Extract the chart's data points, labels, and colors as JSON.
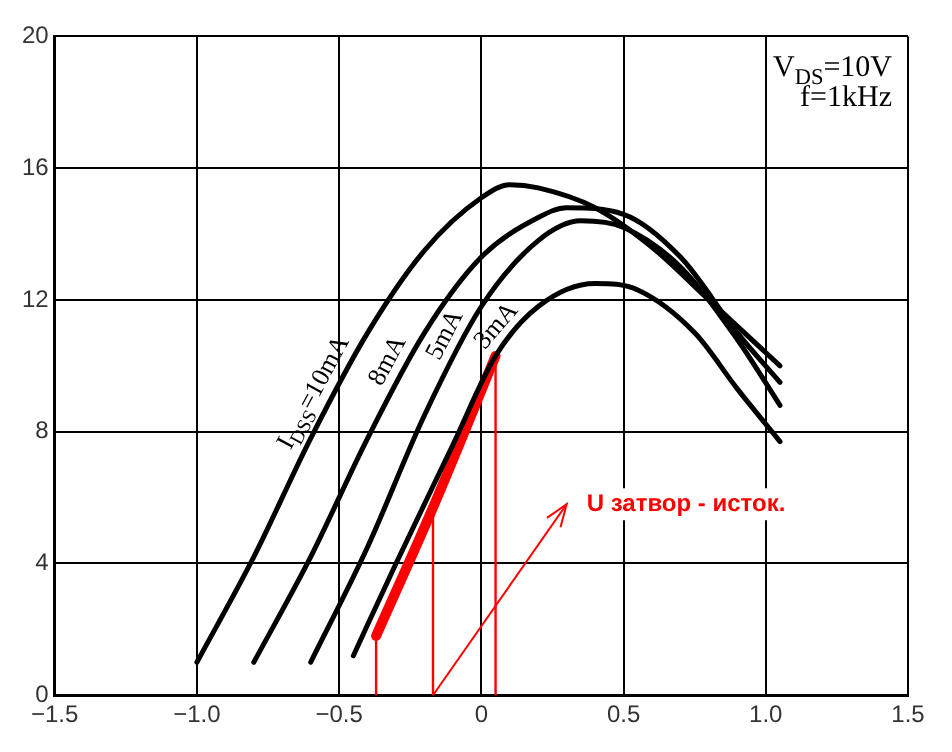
{
  "chart_data": {
    "type": "line",
    "xlim": [
      -1.5,
      1.5
    ],
    "ylim": [
      0,
      20
    ],
    "xticks": [
      {
        "value": -1.5,
        "label": "−1.5"
      },
      {
        "value": -1,
        "label": "−1.0"
      },
      {
        "value": -0.5,
        "label": "−0.5"
      },
      0,
      0.5,
      {
        "value": 1,
        "label": "1.0"
      },
      1.5
    ],
    "yticks": [
      0,
      4,
      8,
      12,
      16,
      20
    ],
    "grid": true,
    "legend": false,
    "marker": "none",
    "line_style": "solid",
    "annotations": [
      "V$_{DS}$=10V",
      "f=1kHz",
      {
        "text": "U затвор - исток.",
        "x": -0.17,
        "y": 0
      }
    ],
    "series": [
      {
        "name": "I$_{DSS}$=10mA",
        "color": "#000000",
        "x": [
          -1.0,
          -0.8,
          -0.6,
          -0.4,
          -0.2,
          0,
          0.1,
          0.2,
          0.4,
          0.6,
          0.8,
          1.05
        ],
        "values": [
          1.0,
          4.2,
          7.8,
          11,
          13.5,
          15.1,
          15.5,
          15.4,
          14.8,
          13.6,
          12.0,
          10.0
        ]
      },
      {
        "name": "8mA",
        "color": "#000000",
        "x": [
          -0.8,
          -0.6,
          -0.4,
          -0.2,
          0,
          0.2,
          0.3,
          0.5,
          0.7,
          0.9,
          1.05
        ],
        "values": [
          1.0,
          4.2,
          7.8,
          11,
          13.3,
          14.5,
          14.8,
          14.6,
          13.3,
          11.0,
          9.5
        ]
      },
      {
        "name": "5mA",
        "color": "#000000",
        "x": [
          -0.6,
          -0.4,
          -0.2,
          0,
          0.2,
          0.35,
          0.5,
          0.7,
          0.9,
          1.05
        ],
        "values": [
          1.0,
          4.5,
          8.5,
          11.8,
          13.8,
          14.4,
          14.2,
          13.0,
          10.8,
          8.8
        ]
      },
      {
        "name": "3mA",
        "color": "#000000",
        "x": [
          -0.45,
          -0.3,
          -0.1,
          0.05,
          0.2,
          0.4,
          0.55,
          0.75,
          0.9,
          1.05
        ],
        "values": [
          1.2,
          4.0,
          7.6,
          10.3,
          11.8,
          12.5,
          12.3,
          11.0,
          9.3,
          7.7
        ]
      },
      {
        "color": "#ff0000",
        "x": [
          -0.37,
          -0.17,
          0.05
        ],
        "values": [
          1.8,
          5.7,
          10.3
        ]
      },
      {
        "color": "#ff0000",
        "x": [
          -0.37,
          -0.37
        ],
        "values": [
          0,
          1.8
        ]
      },
      {
        "color": "#ff0000",
        "x": [
          -0.17,
          -0.17
        ],
        "values": [
          0,
          5.7
        ]
      },
      {
        "color": "#ff0000",
        "x": [
          0.05,
          0.05
        ],
        "values": [
          0,
          10.3
        ]
      }
    ]
  }
}
